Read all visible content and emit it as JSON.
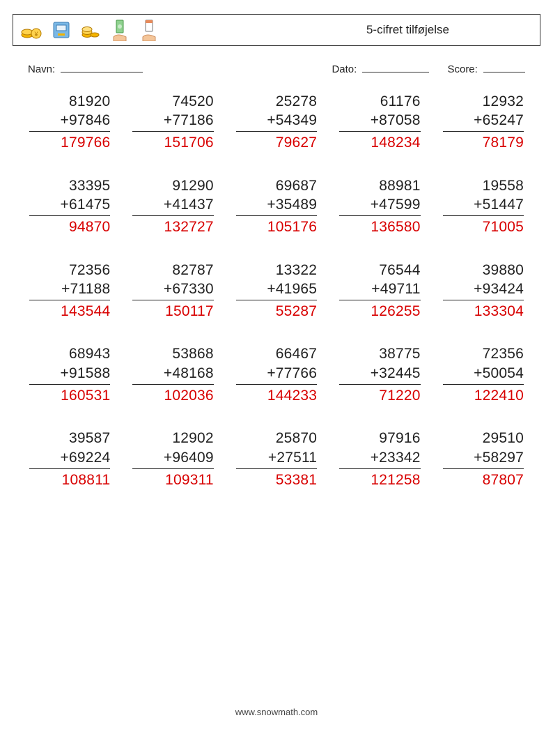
{
  "header": {
    "title": "5-cifret tilføjelse",
    "icons": [
      {
        "name": "coins-stack-icon",
        "color1": "#f4b400",
        "color2": "#e07b00"
      },
      {
        "name": "atm-machine-icon",
        "color1": "#5aa8e0",
        "color2": "#f4b400"
      },
      {
        "name": "coins-pile-icon",
        "color1": "#f4b400",
        "color2": "#e07b00"
      },
      {
        "name": "cash-hand-icon",
        "color1": "#6fbf73",
        "color2": "#f4c69a"
      },
      {
        "name": "card-hand-icon",
        "color1": "#e88a5a",
        "color2": "#f4c69a"
      }
    ]
  },
  "info": {
    "name_label": "Navn:",
    "date_label": "Dato:",
    "score_label": "Score:"
  },
  "operator": "+",
  "problems": [
    {
      "a": "81920",
      "b": "97846",
      "ans": "179766"
    },
    {
      "a": "74520",
      "b": "77186",
      "ans": "151706"
    },
    {
      "a": "25278",
      "b": "54349",
      "ans": "79627"
    },
    {
      "a": "61176",
      "b": "87058",
      "ans": "148234"
    },
    {
      "a": "12932",
      "b": "65247",
      "ans": "78179"
    },
    {
      "a": "33395",
      "b": "61475",
      "ans": "94870"
    },
    {
      "a": "91290",
      "b": "41437",
      "ans": "132727"
    },
    {
      "a": "69687",
      "b": "35489",
      "ans": "105176"
    },
    {
      "a": "88981",
      "b": "47599",
      "ans": "136580"
    },
    {
      "a": "19558",
      "b": "51447",
      "ans": "71005"
    },
    {
      "a": "72356",
      "b": "71188",
      "ans": "143544"
    },
    {
      "a": "82787",
      "b": "67330",
      "ans": "150117"
    },
    {
      "a": "13322",
      "b": "41965",
      "ans": "55287"
    },
    {
      "a": "76544",
      "b": "49711",
      "ans": "126255"
    },
    {
      "a": "39880",
      "b": "93424",
      "ans": "133304"
    },
    {
      "a": "68943",
      "b": "91588",
      "ans": "160531"
    },
    {
      "a": "53868",
      "b": "48168",
      "ans": "102036"
    },
    {
      "a": "66467",
      "b": "77766",
      "ans": "144233"
    },
    {
      "a": "38775",
      "b": "32445",
      "ans": "71220"
    },
    {
      "a": "72356",
      "b": "50054",
      "ans": "122410"
    },
    {
      "a": "39587",
      "b": "69224",
      "ans": "108811"
    },
    {
      "a": "12902",
      "b": "96409",
      "ans": "109311"
    },
    {
      "a": "25870",
      "b": "27511",
      "ans": "53381"
    },
    {
      "a": "97916",
      "b": "23342",
      "ans": "121258"
    },
    {
      "a": "29510",
      "b": "58297",
      "ans": "87807"
    }
  ],
  "footer": {
    "url": "www.snowmath.com"
  },
  "colors": {
    "answer": "#d80000",
    "text": "#222222",
    "border": "#333333",
    "background": "#ffffff"
  }
}
